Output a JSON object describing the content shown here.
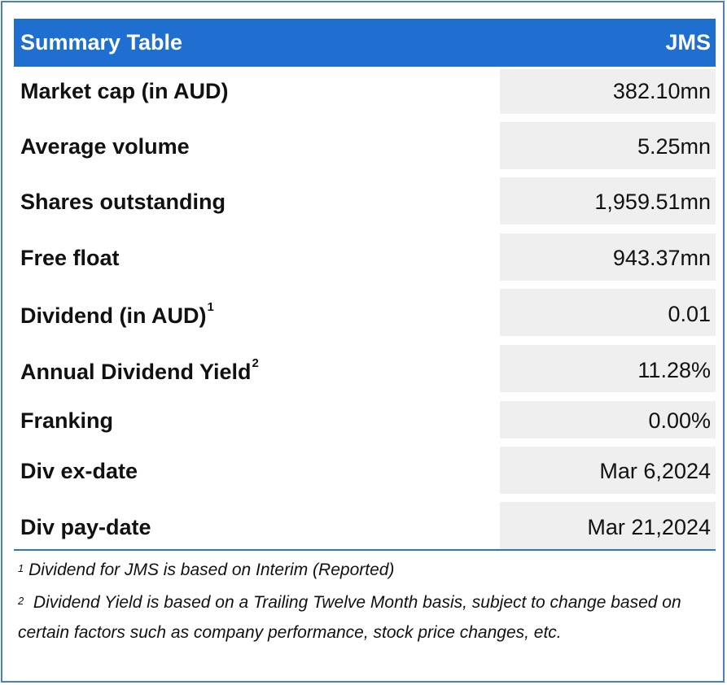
{
  "header": {
    "title": "Summary Table",
    "ticker": "JMS"
  },
  "rows": [
    {
      "label": "Market cap (in AUD)",
      "sup": "",
      "value": "382.10mn"
    },
    {
      "label": "Average volume",
      "sup": "",
      "value": "5.25mn"
    },
    {
      "label": "Shares outstanding",
      "sup": "",
      "value": "1,959.51mn"
    },
    {
      "label": "Free float",
      "sup": "",
      "value": "943.37mn"
    },
    {
      "label": "Dividend (in AUD)",
      "sup": "1",
      "value": "0.01"
    },
    {
      "label": "Annual Dividend Yield",
      "sup": "2",
      "value": "11.28%"
    },
    {
      "label": "Franking",
      "sup": "",
      "value": "0.00%"
    },
    {
      "label": "Div ex-date",
      "sup": "",
      "value": "Mar 6,2024"
    },
    {
      "label": "Div pay-date",
      "sup": "",
      "value": "Mar 21,2024"
    }
  ],
  "footnotes": [
    {
      "mark": "1",
      "text": " Dividend for JMS is based on Interim (Reported)"
    },
    {
      "mark": "2",
      "text": "  Dividend Yield is based on a Trailing Twelve Month basis, subject to change based on certain factors such as company performance, stock price changes, etc."
    }
  ],
  "colors": {
    "header_bg": "#1f6fd0",
    "value_cell_bg": "#efefef",
    "frame_border": "#4a7fc0"
  }
}
